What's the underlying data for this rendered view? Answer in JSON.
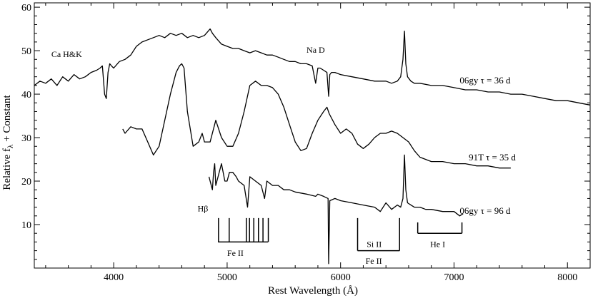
{
  "chart_data": {
    "type": "line",
    "xlabel": "Rest Wavelength (Å)",
    "ylabel": "Relative f",
    "ylabel_sub": "λ",
    "ylabel_suffix": " + Constant",
    "xlim": [
      3300,
      8200
    ],
    "ylim": [
      0,
      61
    ],
    "xticks": [
      4000,
      5000,
      6000,
      7000,
      8000
    ],
    "yticks": [
      10,
      20,
      30,
      40,
      50,
      60
    ],
    "grid": false,
    "series": [
      {
        "name": "06gy τ = 36 d",
        "color": "#000000",
        "x": [
          3300,
          3350,
          3400,
          3450,
          3500,
          3550,
          3600,
          3650,
          3700,
          3750,
          3800,
          3850,
          3880,
          3900,
          3920,
          3935,
          3950,
          3965,
          3980,
          4000,
          4050,
          4100,
          4150,
          4200,
          4250,
          4300,
          4350,
          4400,
          4450,
          4500,
          4550,
          4600,
          4650,
          4700,
          4750,
          4800,
          4850,
          4870,
          4900,
          4950,
          5000,
          5050,
          5100,
          5150,
          5200,
          5250,
          5300,
          5350,
          5400,
          5450,
          5500,
          5550,
          5600,
          5650,
          5700,
          5750,
          5780,
          5800,
          5820,
          5850,
          5880,
          5895,
          5905,
          5920,
          5950,
          6000,
          6100,
          6200,
          6300,
          6400,
          6450,
          6500,
          6530,
          6550,
          6563,
          6575,
          6590,
          6620,
          6650,
          6700,
          6800,
          6900,
          7000,
          7100,
          7200,
          7300,
          7400,
          7500,
          7600,
          7700,
          7800,
          7900,
          8000,
          8100,
          8200
        ],
        "y": [
          42,
          43,
          42.5,
          43.5,
          42,
          44,
          43,
          44.5,
          43.5,
          44,
          45,
          45.5,
          46,
          46.5,
          40,
          39,
          45,
          47,
          46.5,
          46,
          47.5,
          48,
          49,
          51,
          52,
          52.5,
          53,
          53.5,
          53,
          54,
          53.5,
          54,
          53,
          53.5,
          53,
          53.5,
          55,
          54,
          53,
          51.5,
          51,
          50.5,
          50.5,
          50,
          49.5,
          50,
          49.5,
          49,
          49,
          48.5,
          48,
          47.5,
          47.5,
          47,
          47,
          46.5,
          42.5,
          46,
          46,
          45.5,
          45,
          39.5,
          44.5,
          45,
          45,
          44.5,
          44,
          43.5,
          43,
          43,
          42.5,
          43,
          44,
          48,
          54.5,
          47,
          44,
          43,
          42.5,
          42.5,
          42,
          42,
          41.5,
          41,
          41,
          40.5,
          40.5,
          40,
          40,
          39.5,
          39,
          38.5,
          38.5,
          38,
          37.5
        ]
      },
      {
        "name": "91T τ = 35 d",
        "color": "#000000",
        "x": [
          4080,
          4100,
          4150,
          4200,
          4250,
          4300,
          4350,
          4400,
          4450,
          4500,
          4550,
          4580,
          4600,
          4620,
          4650,
          4700,
          4750,
          4780,
          4800,
          4850,
          4900,
          4950,
          5000,
          5050,
          5100,
          5150,
          5200,
          5250,
          5300,
          5350,
          5400,
          5450,
          5500,
          5550,
          5600,
          5650,
          5700,
          5750,
          5800,
          5850,
          5880,
          5900,
          5950,
          6000,
          6050,
          6100,
          6150,
          6200,
          6250,
          6300,
          6350,
          6400,
          6450,
          6500,
          6550,
          6600,
          6650,
          6700,
          6800,
          6900,
          7000,
          7100,
          7200,
          7300,
          7400,
          7500
        ],
        "y": [
          32,
          31,
          32.5,
          32,
          32,
          29,
          26,
          28,
          34,
          40,
          45,
          46.5,
          47,
          46,
          36,
          28,
          29,
          31,
          29,
          29,
          34,
          30,
          28,
          28,
          31,
          36,
          42,
          43,
          42,
          42,
          41.5,
          40,
          37,
          33,
          29,
          27,
          27.5,
          31,
          34,
          36,
          37,
          35.5,
          33,
          31,
          32,
          31,
          28.5,
          27.5,
          28.5,
          30,
          31,
          31,
          31.5,
          31,
          30,
          29,
          27,
          25.5,
          24.5,
          24.5,
          24,
          24,
          23.5,
          23.5,
          23,
          23
        ]
      },
      {
        "name": "06gy τ = 96 d",
        "color": "#000000",
        "x": [
          4840,
          4860,
          4870,
          4880,
          4890,
          4900,
          4920,
          4950,
          4980,
          5000,
          5020,
          5050,
          5080,
          5100,
          5150,
          5180,
          5200,
          5250,
          5300,
          5330,
          5350,
          5400,
          5450,
          5500,
          5550,
          5600,
          5700,
          5780,
          5800,
          5850,
          5890,
          5895,
          5905,
          5950,
          6000,
          6100,
          6200,
          6300,
          6350,
          6400,
          6450,
          6500,
          6530,
          6550,
          6563,
          6575,
          6590,
          6620,
          6650,
          6700,
          6750,
          6800,
          6900,
          7000,
          7050,
          7080
        ],
        "y": [
          21,
          19,
          18,
          22,
          24,
          19,
          21,
          24,
          20,
          20,
          22,
          22,
          21,
          20,
          19,
          14,
          21,
          20,
          19,
          16,
          20,
          19,
          19,
          18,
          18,
          17.5,
          17,
          16.5,
          17,
          16.5,
          16,
          1,
          15.5,
          16,
          15.5,
          15,
          14.5,
          14,
          13,
          15,
          13.5,
          14.5,
          14,
          16,
          26,
          18,
          15,
          14.5,
          14,
          14,
          13.5,
          13.5,
          13,
          13,
          12,
          12.5
        ]
      }
    ],
    "series_labels": [
      {
        "text": "06gy  τ = 36 d",
        "x": 7050,
        "y": 42.5
      },
      {
        "text": "91T  τ = 35 d",
        "x": 7130,
        "y": 24.8
      },
      {
        "text": "06gy  τ = 96 d",
        "x": 7050,
        "y": 12.5
      }
    ],
    "annotations": [
      {
        "text": "Ca H&K",
        "x": 3450,
        "y": 48.5
      },
      {
        "text": "Na D",
        "x": 5700,
        "y": 49.5
      },
      {
        "text": "Hβ",
        "x": 4740,
        "y": 13
      },
      {
        "text": "Fe II",
        "x": 5000,
        "y": 2.8
      },
      {
        "text": "Si II",
        "x": 6230,
        "y": 4.8
      },
      {
        "text": "Fe II",
        "x": 6220,
        "y": 1
      },
      {
        "text": "He I",
        "x": 6790,
        "y": 4.8
      }
    ],
    "line_groups": [
      {
        "name": "Fe II",
        "x_start": 4920,
        "x_end": 5360,
        "y_bar": 6,
        "y_top": 11.5,
        "lines": [
          4924,
          5018,
          5169,
          5197,
          5235,
          5276,
          5316,
          5363
        ]
      },
      {
        "name": "Si II",
        "x_start": 6150,
        "x_end": 6520,
        "y_bar": 4,
        "y_top": 11.5,
        "lines": [
          6150,
          6520
        ]
      },
      {
        "name": "He I",
        "x_start": 6680,
        "x_end": 7070,
        "y_bar": 8,
        "y_top": 10.5,
        "lines": [
          6680,
          7070
        ]
      }
    ]
  }
}
